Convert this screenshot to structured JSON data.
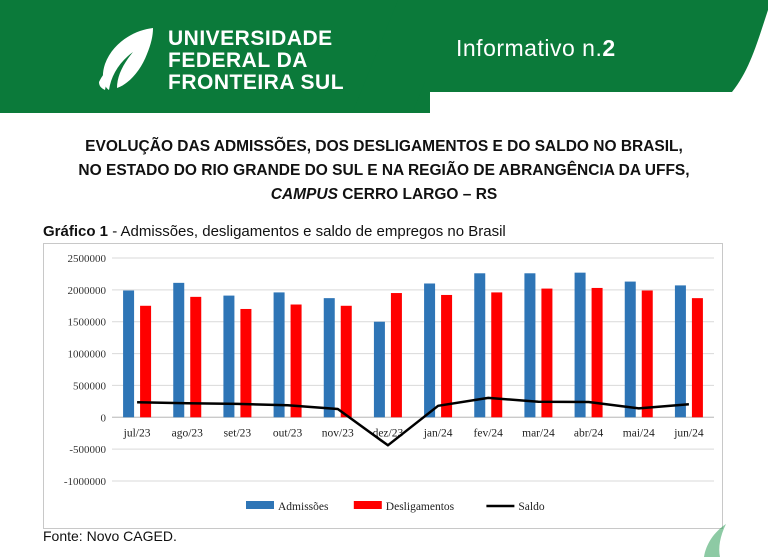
{
  "header": {
    "logo_line1": "UNIVERSIDADE",
    "logo_line2": "FEDERAL DA",
    "logo_line3": "FRONTEIRA SUL",
    "info_prefix": "Informativo n.",
    "info_number": "2",
    "brand_green": "#0b7a3a"
  },
  "title": {
    "line1": "EVOLUÇÃO DAS ADMISSÕES, DOS DESLIGAMENTOS E DO SALDO NO BRASIL,",
    "line2": "NO ESTADO DO RIO GRANDE DO SUL E NA REGIÃO DE ABRANGÊNCIA DA UFFS,",
    "line3_italic": "CAMPUS",
    "line3_rest": " CERRO LARGO – RS"
  },
  "caption": {
    "label": "Gráfico 1",
    "text": " - Admissões, desligamentos e saldo de empregos no Brasil"
  },
  "source": "Fonte: Novo CAGED.",
  "chart_data": {
    "type": "bar",
    "categories": [
      "jul/23",
      "ago/23",
      "set/23",
      "out/23",
      "nov/23",
      "dez/23",
      "jan/24",
      "fev/24",
      "mar/24",
      "abr/24",
      "mai/24",
      "jun/24"
    ],
    "series": [
      {
        "name": "Admissões",
        "type": "bar",
        "color": "#2e75b6",
        "values": [
          1990000,
          2110000,
          1910000,
          1960000,
          1870000,
          1500000,
          2100000,
          2260000,
          2260000,
          2270000,
          2130000,
          2070000
        ]
      },
      {
        "name": "Desligamentos",
        "type": "bar",
        "color": "#ff0000",
        "values": [
          1750000,
          1890000,
          1700000,
          1770000,
          1750000,
          1950000,
          1920000,
          1960000,
          2020000,
          2030000,
          1990000,
          1870000
        ]
      },
      {
        "name": "Saldo",
        "type": "line",
        "color": "#000000",
        "values": [
          235000,
          220000,
          210000,
          190000,
          130000,
          -440000,
          180000,
          305000,
          245000,
          240000,
          140000,
          205000
        ]
      }
    ],
    "ylim": [
      -1000000,
      2500000
    ],
    "yticks": [
      "2500000",
      "2000000",
      "1500000",
      "1000000",
      "500000",
      "0",
      "-500000",
      "-1000000"
    ],
    "ytick_values": [
      2500000,
      2000000,
      1500000,
      1000000,
      500000,
      0,
      -500000,
      -1000000
    ],
    "grid": true,
    "legend_position": "bottom"
  }
}
